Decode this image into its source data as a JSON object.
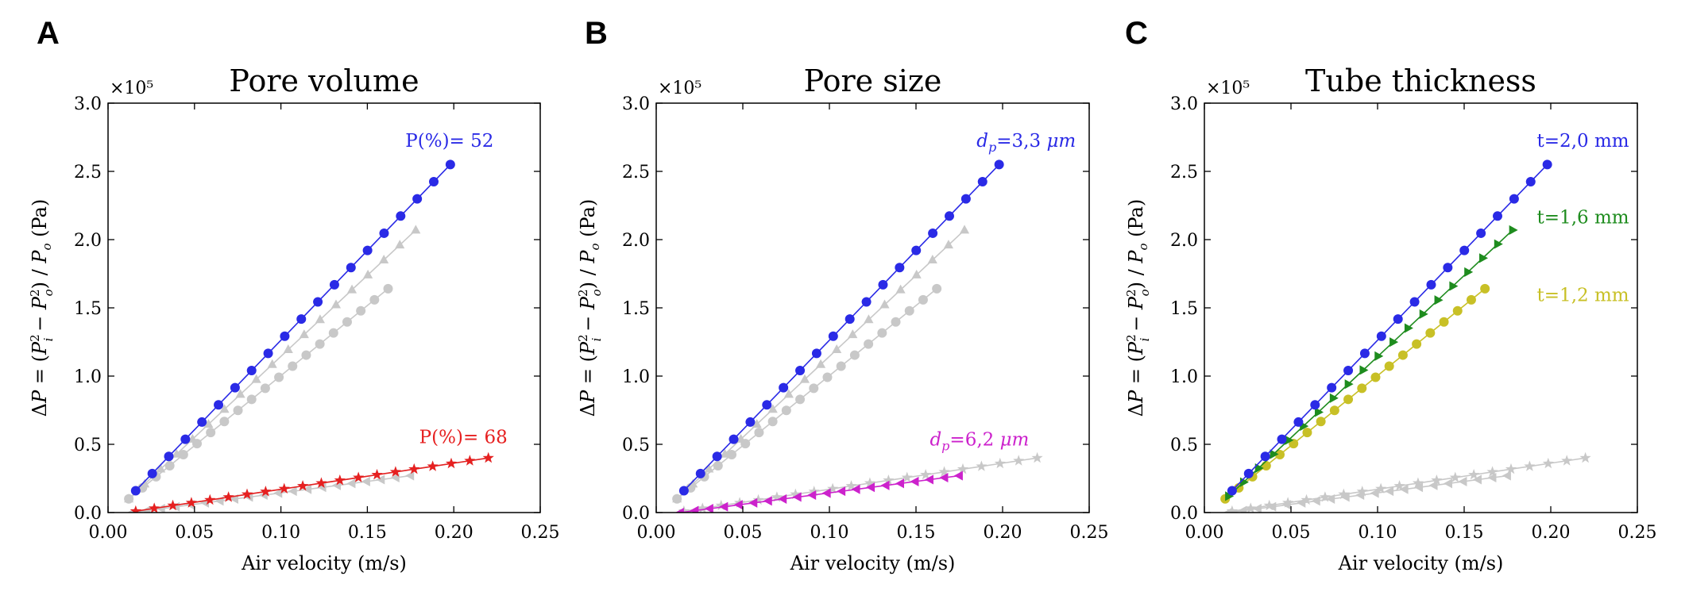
{
  "chart_data": [
    {
      "type": "line",
      "panel_letter": "A",
      "title": "Pore volume",
      "xlabel": "Air velocity (m/s)",
      "ylabel": "ΔP = (P_i² − P_o²) / P_o (Pa)",
      "y_multiplier": "×10⁵",
      "xlim": [
        0.0,
        0.25
      ],
      "ylim": [
        0.0,
        3.0
      ],
      "xticks": [
        "0.00",
        "0.05",
        "0.10",
        "0.15",
        "0.20",
        "0.25"
      ],
      "yticks": [
        "0.0",
        "0.5",
        "1.0",
        "1.5",
        "2.0",
        "2.5",
        "3.0"
      ],
      "grid": false,
      "series": [
        {
          "name": "",
          "color": "#c8c8c8",
          "marker": "triangle",
          "x_range": [
            0.012,
            0.178
          ],
          "y_range": [
            0.1,
            2.07
          ],
          "points": 19
        },
        {
          "name": "",
          "color": "#c8c8c8",
          "marker": "circle",
          "x_range": [
            0.012,
            0.162
          ],
          "y_range": [
            0.1,
            1.64
          ],
          "points": 20
        },
        {
          "name": "",
          "color": "#c8c8c8",
          "marker": "triangle-left",
          "x_range": [
            0.014,
            0.175
          ],
          "y_range": [
            0.0,
            0.27
          ],
          "points": 20
        },
        {
          "name": "",
          "color": "#c8c8c8",
          "marker": "star",
          "x_range": [
            0.016,
            0.22
          ],
          "y_range": [
            0.01,
            0.4
          ],
          "points": 20
        },
        {
          "name": "",
          "color": "#2a2ae6",
          "marker": "circle",
          "x_range": [
            0.016,
            0.198
          ],
          "y_range": [
            0.16,
            2.55
          ],
          "points": 20
        },
        {
          "name": "",
          "color": "#e62020",
          "marker": "star",
          "x_range": [
            0.016,
            0.22
          ],
          "y_range": [
            0.01,
            0.4
          ],
          "points": 20
        }
      ],
      "labels": [
        {
          "text": "P(%)= 52",
          "color": "#2a2ae6",
          "x": 0.172,
          "y": 2.68
        },
        {
          "text": "P(%)= 68",
          "color": "#e62020",
          "x": 0.18,
          "y": 0.51
        }
      ]
    },
    {
      "type": "line",
      "panel_letter": "B",
      "title": "Pore size",
      "xlabel": "Air velocity (m/s)",
      "ylabel": "ΔP = (P_i² − P_o²) / P_o (Pa)",
      "y_multiplier": "×10⁵",
      "xlim": [
        0.0,
        0.25
      ],
      "ylim": [
        0.0,
        3.0
      ],
      "xticks": [
        "0.00",
        "0.05",
        "0.10",
        "0.15",
        "0.20",
        "0.25"
      ],
      "yticks": [
        "0.0",
        "0.5",
        "1.0",
        "1.5",
        "2.0",
        "2.5",
        "3.0"
      ],
      "grid": false,
      "series": [
        {
          "name": "",
          "color": "#c8c8c8",
          "marker": "triangle",
          "x_range": [
            0.012,
            0.178
          ],
          "y_range": [
            0.1,
            2.07
          ],
          "points": 19
        },
        {
          "name": "",
          "color": "#c8c8c8",
          "marker": "circle",
          "x_range": [
            0.012,
            0.162
          ],
          "y_range": [
            0.1,
            1.64
          ],
          "points": 20
        },
        {
          "name": "",
          "color": "#c8c8c8",
          "marker": "star",
          "x_range": [
            0.016,
            0.22
          ],
          "y_range": [
            0.01,
            0.4
          ],
          "points": 20
        },
        {
          "name": "",
          "color": "#2a2ae6",
          "marker": "circle",
          "x_range": [
            0.016,
            0.198
          ],
          "y_range": [
            0.16,
            2.55
          ],
          "points": 20
        },
        {
          "name": "",
          "color": "#cc22cc",
          "marker": "triangle-left",
          "x_range": [
            0.014,
            0.175
          ],
          "y_range": [
            0.0,
            0.27
          ],
          "points": 20
        }
      ],
      "labels": [
        {
          "text": "d_p=3,3 μm",
          "color": "#2a2ae6",
          "x": 0.185,
          "y": 2.68
        },
        {
          "text": "d_p=6,2 μm",
          "color": "#cc22cc",
          "x": 0.158,
          "y": 0.49
        }
      ]
    },
    {
      "type": "line",
      "panel_letter": "C",
      "title": "Tube thickness",
      "xlabel": "Air velocity (m/s)",
      "ylabel": "ΔP = (P_i² − P_o²) / P_o (Pa)",
      "y_multiplier": "×10⁵",
      "xlim": [
        0.0,
        0.25
      ],
      "ylim": [
        0.0,
        3.0
      ],
      "xticks": [
        "0.00",
        "0.05",
        "0.10",
        "0.15",
        "0.20",
        "0.25"
      ],
      "yticks": [
        "0.0",
        "0.5",
        "1.0",
        "1.5",
        "2.0",
        "2.5",
        "3.0"
      ],
      "grid": false,
      "series": [
        {
          "name": "",
          "color": "#c8c8c8",
          "marker": "star",
          "x_range": [
            0.016,
            0.22
          ],
          "y_range": [
            0.01,
            0.4
          ],
          "points": 20
        },
        {
          "name": "",
          "color": "#c8c8c8",
          "marker": "triangle-left",
          "x_range": [
            0.014,
            0.175
          ],
          "y_range": [
            0.0,
            0.27
          ],
          "points": 20
        },
        {
          "name": "",
          "color": "#c8c026",
          "marker": "circle",
          "x_range": [
            0.012,
            0.162
          ],
          "y_range": [
            0.1,
            1.64
          ],
          "points": 20
        },
        {
          "name": "",
          "color": "#1e8c1e",
          "marker": "triangle-right",
          "x_range": [
            0.014,
            0.178
          ],
          "y_range": [
            0.12,
            2.07
          ],
          "points": 20
        },
        {
          "name": "",
          "color": "#2a2ae6",
          "marker": "circle",
          "x_range": [
            0.016,
            0.198
          ],
          "y_range": [
            0.16,
            2.55
          ],
          "points": 20
        }
      ],
      "labels": [
        {
          "text": "t=2,0 mm",
          "color": "#2a2ae6",
          "x": 0.192,
          "y": 2.68
        },
        {
          "text": "t=1,6 mm",
          "color": "#1e8c1e",
          "x": 0.192,
          "y": 2.12
        },
        {
          "text": "t=1,2 mm",
          "color": "#c8c026",
          "x": 0.192,
          "y": 1.55
        }
      ]
    }
  ]
}
